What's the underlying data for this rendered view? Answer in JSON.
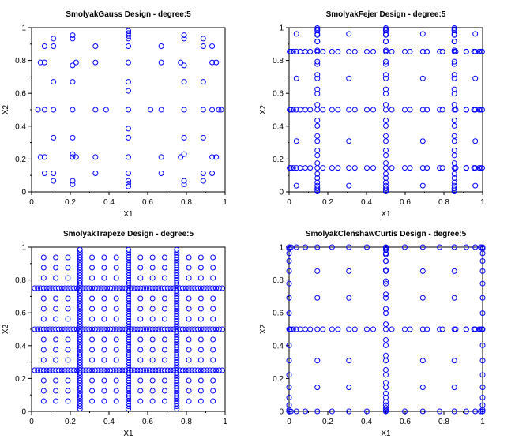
{
  "figure": {
    "point_color": "#0000ff"
  },
  "chart_data": [
    {
      "type": "scatter",
      "title": "SmolyakGauss Design - degree:5",
      "xlabel": "X1",
      "ylabel": "X2",
      "xlim": [
        0,
        1
      ],
      "ylim": [
        0,
        1
      ],
      "xticks": [
        "0",
        "0.2",
        "0.4",
        "0.6",
        "0.8",
        "1"
      ],
      "yticks": [
        "0",
        "0.2",
        "0.4",
        "0.6",
        "0.8",
        "1"
      ],
      "grid": false,
      "series": [
        {
          "points": [
            [
              0.5,
              0.5
            ],
            [
              0.113,
              0.5
            ],
            [
              0.887,
              0.5
            ],
            [
              0.5,
              0.113
            ],
            [
              0.5,
              0.887
            ],
            [
              0.113,
              0.113
            ],
            [
              0.113,
              0.887
            ],
            [
              0.887,
              0.113
            ],
            [
              0.887,
              0.887
            ],
            [
              0.033,
              0.5
            ],
            [
              0.067,
              0.5
            ],
            [
              0.212,
              0.5
            ],
            [
              0.33,
              0.5
            ],
            [
              0.385,
              0.5
            ],
            [
              0.615,
              0.5
            ],
            [
              0.67,
              0.5
            ],
            [
              0.788,
              0.5
            ],
            [
              0.933,
              0.5
            ],
            [
              0.967,
              0.5
            ],
            [
              0.98,
              0.5
            ],
            [
              0.5,
              0.033
            ],
            [
              0.5,
              0.067
            ],
            [
              0.5,
              0.212
            ],
            [
              0.5,
              0.33
            ],
            [
              0.5,
              0.385
            ],
            [
              0.5,
              0.615
            ],
            [
              0.5,
              0.67
            ],
            [
              0.5,
              0.788
            ],
            [
              0.5,
              0.933
            ],
            [
              0.5,
              0.967
            ],
            [
              0.5,
              0.98
            ],
            [
              0.5,
              0.05
            ],
            [
              0.5,
              0.95
            ],
            [
              0.046,
              0.212
            ],
            [
              0.067,
              0.212
            ],
            [
              0.933,
              0.212
            ],
            [
              0.954,
              0.212
            ],
            [
              0.046,
              0.788
            ],
            [
              0.067,
              0.788
            ],
            [
              0.933,
              0.788
            ],
            [
              0.954,
              0.788
            ],
            [
              0.212,
              0.046
            ],
            [
              0.212,
              0.067
            ],
            [
              0.788,
              0.046
            ],
            [
              0.788,
              0.067
            ],
            [
              0.212,
              0.933
            ],
            [
              0.212,
              0.954
            ],
            [
              0.788,
              0.933
            ],
            [
              0.788,
              0.954
            ],
            [
              0.212,
              0.212
            ],
            [
              0.23,
              0.212
            ],
            [
              0.212,
              0.23
            ],
            [
              0.77,
              0.212
            ],
            [
              0.788,
              0.23
            ],
            [
              0.212,
              0.77
            ],
            [
              0.23,
              0.788
            ],
            [
              0.77,
              0.788
            ],
            [
              0.788,
              0.77
            ],
            [
              0.113,
              0.33
            ],
            [
              0.113,
              0.67
            ],
            [
              0.887,
              0.33
            ],
            [
              0.887,
              0.67
            ],
            [
              0.33,
              0.113
            ],
            [
              0.67,
              0.113
            ],
            [
              0.33,
              0.887
            ],
            [
              0.67,
              0.887
            ],
            [
              0.212,
              0.33
            ],
            [
              0.212,
              0.67
            ],
            [
              0.788,
              0.33
            ],
            [
              0.788,
              0.67
            ],
            [
              0.33,
              0.212
            ],
            [
              0.67,
              0.212
            ],
            [
              0.33,
              0.788
            ],
            [
              0.67,
              0.788
            ],
            [
              0.067,
              0.113
            ],
            [
              0.113,
              0.067
            ],
            [
              0.933,
              0.113
            ],
            [
              0.887,
              0.067
            ],
            [
              0.067,
              0.887
            ],
            [
              0.113,
              0.933
            ],
            [
              0.933,
              0.887
            ],
            [
              0.887,
              0.933
            ]
          ]
        }
      ]
    },
    {
      "type": "scatter",
      "title": "SmolyakFejer Design - degree:5",
      "xlabel": "X1",
      "ylabel": "X2",
      "xlim": [
        0,
        1
      ],
      "ylim": [
        0,
        1
      ],
      "xticks": [
        "0",
        "0.2",
        "0.4",
        "0.6",
        "0.8",
        "1"
      ],
      "yticks": [
        "0",
        "0.2",
        "0.4",
        "0.6",
        "0.8",
        "1"
      ],
      "grid": false,
      "generator": {
        "lines": [
          0.5,
          0.146,
          0.854
        ],
        "line_points": [
          0.0096,
          0.038,
          0.084,
          0.146,
          0.222,
          0.309,
          0.402,
          0.5,
          0.598,
          0.691,
          0.778,
          0.854,
          0.916,
          0.962,
          0.99,
          0.0024,
          0.0213,
          0.0575,
          0.1091,
          0.1747,
          0.2524,
          0.3399,
          0.4349,
          0.5307,
          0.6245,
          0.7128,
          0.7926,
          0.8611,
          0.9153,
          0.9553,
          0.9823,
          0.9976
        ],
        "sparse_points": [
          0.038,
          0.146,
          0.309,
          0.5,
          0.691,
          0.854,
          0.962
        ]
      }
    },
    {
      "type": "scatter",
      "title": "SmolyakTrapeze Design - degree:5",
      "xlabel": "X1",
      "ylabel": "X2",
      "xlim": [
        0,
        1
      ],
      "ylim": [
        0,
        1
      ],
      "xticks": [
        "0",
        "0.2",
        "0.4",
        "0.6",
        "0.8",
        "1"
      ],
      "yticks": [
        "0",
        "0.2",
        "0.4",
        "0.6",
        "0.8",
        "1"
      ],
      "grid": false,
      "generator": {
        "lines": [
          0.5,
          0.25,
          0.75
        ],
        "line_points": [
          0.0156,
          0.0313,
          0.0469,
          0.0625,
          0.0781,
          0.0938,
          0.1094,
          0.125,
          0.1406,
          0.1563,
          0.1719,
          0.1875,
          0.2031,
          0.2188,
          0.2344,
          0.25,
          0.2656,
          0.2813,
          0.2969,
          0.3125,
          0.3281,
          0.3438,
          0.3594,
          0.375,
          0.3906,
          0.4063,
          0.4219,
          0.4375,
          0.4531,
          0.4688,
          0.4844,
          0.5,
          0.5156,
          0.5313,
          0.5469,
          0.5625,
          0.5781,
          0.5938,
          0.6094,
          0.625,
          0.6406,
          0.6563,
          0.6719,
          0.6875,
          0.7031,
          0.7188,
          0.7344,
          0.75,
          0.7656,
          0.7813,
          0.7969,
          0.8125,
          0.8281,
          0.8438,
          0.8594,
          0.875,
          0.8906,
          0.9063,
          0.9219,
          0.9375,
          0.9531,
          0.9688,
          0.9844
        ],
        "sparse_points": [
          0.0625,
          0.125,
          0.1875,
          0.25,
          0.3125,
          0.375,
          0.4375,
          0.5,
          0.5625,
          0.625,
          0.6875,
          0.75,
          0.8125,
          0.875,
          0.9375
        ]
      }
    },
    {
      "type": "scatter",
      "title": "SmolyakClenshawCurtis Design - degree:5",
      "xlabel": "X1",
      "ylabel": "X2",
      "xlim": [
        0,
        1
      ],
      "ylim": [
        0,
        1
      ],
      "xticks": [
        "0",
        "0.2",
        "0.4",
        "0.6",
        "0.8",
        "1"
      ],
      "yticks": [
        "0",
        "0.2",
        "0.4",
        "0.6",
        "0.8",
        "1"
      ],
      "grid": false,
      "generator": {
        "lines": [
          0.5
        ],
        "line_points": [
          0,
          0.0096,
          0.038,
          0.084,
          0.146,
          0.222,
          0.309,
          0.402,
          0.5,
          0.598,
          0.691,
          0.778,
          0.854,
          0.916,
          0.962,
          0.99,
          1,
          0.0024,
          0.0213,
          0.0575,
          0.1091,
          0.1747,
          0.2524,
          0.3399,
          0.4349,
          0.5307,
          0.6245,
          0.7128,
          0.7926,
          0.8611,
          0.9153,
          0.9553,
          0.9823,
          0.9976
        ],
        "border_points": [
          0,
          0.0096,
          0.038,
          0.084,
          0.146,
          0.222,
          0.309,
          0.402,
          0.5,
          0.598,
          0.691,
          0.778,
          0.854,
          0.916,
          0.962,
          0.99,
          1
        ],
        "sparse_points": [
          0.146,
          0.309,
          0.691,
          0.854
        ]
      }
    }
  ]
}
